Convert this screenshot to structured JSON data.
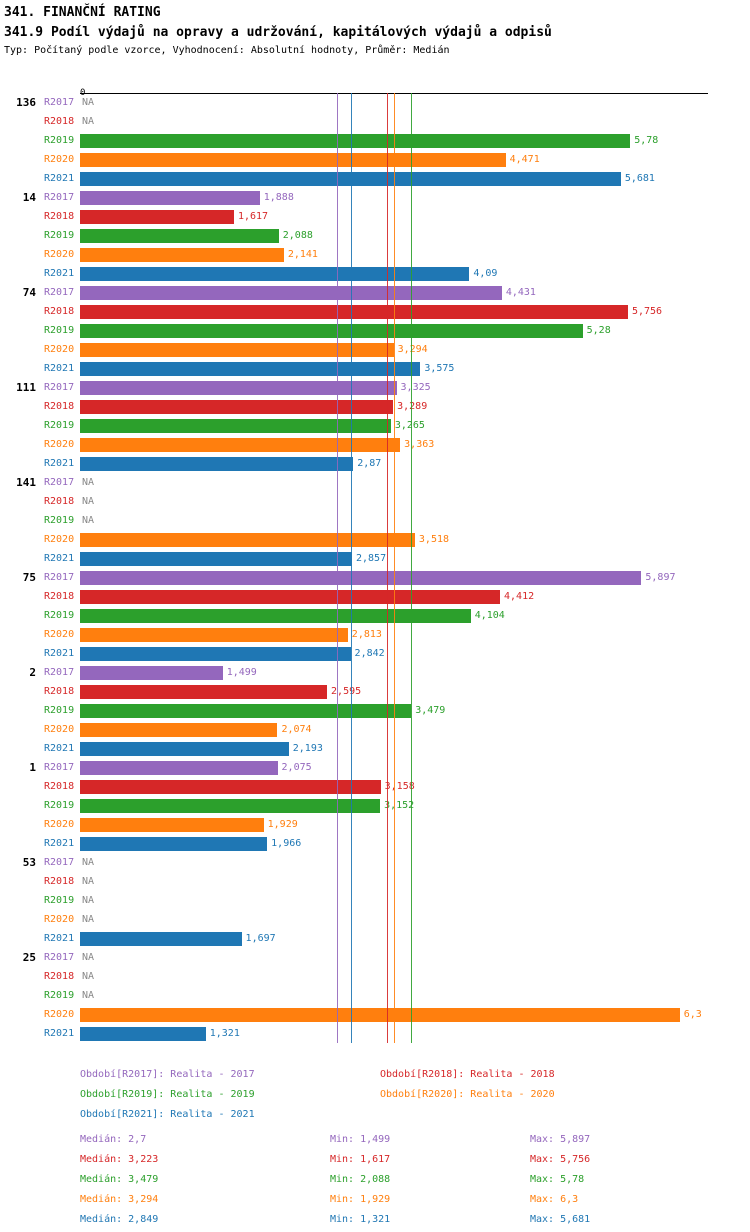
{
  "header": {
    "title": "341. FINANČNÍ RATING",
    "subtitle": "341.9 Podíl výdajů na opravy a udržování, kapitálových výdajů a odpisů",
    "meta": "Typ: Počítaný podle vzorce, Vyhodnocení: Absolutní hodnoty, Průměr: Medián"
  },
  "axis": {
    "zero_label": "0"
  },
  "years": [
    {
      "key": "R2017",
      "name": "Realita - 2017",
      "color": "#9467bd",
      "median": 2.7
    },
    {
      "key": "R2018",
      "name": "Realita - 2018",
      "color": "#d62728",
      "median": 3.223
    },
    {
      "key": "R2019",
      "name": "Realita - 2019",
      "color": "#2ca02c",
      "median": 3.479
    },
    {
      "key": "R2020",
      "name": "Realita - 2020",
      "color": "#ff7f0e",
      "median": 3.294
    },
    {
      "key": "R2021",
      "name": "Realita - 2021",
      "color": "#1f77b4",
      "median": 2.849
    }
  ],
  "groups": [
    {
      "label": "136",
      "values": [
        "NA",
        "NA",
        "5,78",
        "4,471",
        "5,681"
      ]
    },
    {
      "label": "14",
      "values": [
        "1,888",
        "1,617",
        "2,088",
        "2,141",
        "4,09"
      ]
    },
    {
      "label": "74",
      "values": [
        "4,431",
        "5,756",
        "5,28",
        "3,294",
        "3,575"
      ]
    },
    {
      "label": "111",
      "values": [
        "3,325",
        "3,289",
        "3,265",
        "3,363",
        "2,87"
      ]
    },
    {
      "label": "141",
      "values": [
        "NA",
        "NA",
        "NA",
        "3,518",
        "2,857"
      ]
    },
    {
      "label": "75",
      "values": [
        "5,897",
        "4,412",
        "4,104",
        "2,813",
        "2,842"
      ]
    },
    {
      "label": "2",
      "values": [
        "1,499",
        "2,595",
        "3,479",
        "2,074",
        "2,193"
      ]
    },
    {
      "label": "1",
      "values": [
        "2,075",
        "3,158",
        "3,152",
        "1,929",
        "1,966"
      ]
    },
    {
      "label": "53",
      "values": [
        "NA",
        "NA",
        "NA",
        "NA",
        "1,697"
      ]
    },
    {
      "label": "25",
      "values": [
        "NA",
        "NA",
        "NA",
        "6,3",
        "1,321"
      ]
    }
  ],
  "legend": [
    {
      "label": "Období[R2017]: Realita - 2017"
    },
    {
      "label": "Období[R2018]: Realita - 2018"
    },
    {
      "label": "Období[R2019]: Realita - 2019"
    },
    {
      "label": "Období[R2020]: Realita - 2020"
    },
    {
      "label": "Období[R2021]: Realita - 2021"
    }
  ],
  "stats": [
    {
      "median": "Medián: 2,7",
      "min": "Min: 1,499",
      "max": "Max: 5,897"
    },
    {
      "median": "Medián: 3,223",
      "min": "Min: 1,617",
      "max": "Max: 5,756"
    },
    {
      "median": "Medián: 3,479",
      "min": "Min: 2,088",
      "max": "Max: 5,78"
    },
    {
      "median": "Medián: 3,294",
      "min": "Min: 1,929",
      "max": "Max: 6,3"
    },
    {
      "median": "Medián: 2,849",
      "min": "Min: 1,321",
      "max": "Max: 5,681"
    }
  ],
  "chart_data": {
    "type": "bar",
    "orientation": "horizontal",
    "title": "341.9 Podíl výdajů na opravy a udržování, kapitálových výdajů a odpisů",
    "categories": [
      "136",
      "14",
      "74",
      "111",
      "141",
      "75",
      "2",
      "1",
      "53",
      "25"
    ],
    "series": [
      {
        "name": "Realita - 2017",
        "color": "#9467bd",
        "values": [
          null,
          1.888,
          4.431,
          3.325,
          null,
          5.897,
          1.499,
          2.075,
          null,
          null
        ]
      },
      {
        "name": "Realita - 2018",
        "color": "#d62728",
        "values": [
          null,
          1.617,
          5.756,
          3.289,
          null,
          4.412,
          2.595,
          3.158,
          null,
          null
        ]
      },
      {
        "name": "Realita - 2019",
        "color": "#2ca02c",
        "values": [
          5.78,
          2.088,
          5.28,
          3.265,
          null,
          4.104,
          3.479,
          3.152,
          null,
          null
        ]
      },
      {
        "name": "Realita - 2020",
        "color": "#ff7f0e",
        "values": [
          4.471,
          2.141,
          3.294,
          3.363,
          3.518,
          2.813,
          2.074,
          1.929,
          null,
          6.3
        ]
      },
      {
        "name": "Realita - 2021",
        "color": "#1f77b4",
        "values": [
          5.681,
          4.09,
          3.575,
          2.87,
          2.857,
          2.842,
          2.193,
          1.966,
          1.697,
          1.321
        ]
      }
    ],
    "medians": {
      "R2017": 2.7,
      "R2018": 3.223,
      "R2019": 3.479,
      "R2020": 3.294,
      "R2021": 2.849
    },
    "mins": {
      "R2017": 1.499,
      "R2018": 1.617,
      "R2019": 2.088,
      "R2020": 1.929,
      "R2021": 1.321
    },
    "maxs": {
      "R2017": 5.897,
      "R2018": 5.756,
      "R2019": 5.78,
      "R2020": 6.3,
      "R2021": 5.681
    },
    "xlim": [
      0,
      6.6
    ],
    "value_axis": "x",
    "grid": false,
    "legend_position": "bottom",
    "na_marker": "NA"
  }
}
